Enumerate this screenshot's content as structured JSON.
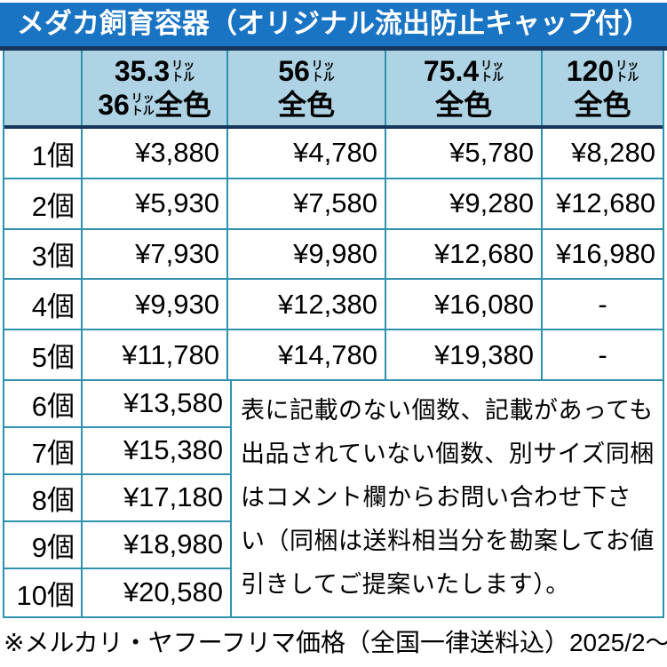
{
  "title": "メダカ飼育容器（オリジナル流出防止キャップ付）",
  "colors": {
    "title_bg": "#1a74c4",
    "title_bottom_border": "#17365d",
    "header_bg": "#aed3e4",
    "grid_border": "#2e91ae",
    "header_divider": "#17365d",
    "title_text": "#ffffff",
    "body_text": "#000000"
  },
  "table": {
    "columns": [
      {
        "line1_value": "35.3",
        "unit_top": "リッ",
        "unit_bottom": "トル",
        "line2_value": "36",
        "line2_label": "全色"
      },
      {
        "line1_value": "56",
        "unit_top": "リッ",
        "unit_bottom": "トル",
        "line2_label": "全色"
      },
      {
        "line1_value": "75.4",
        "unit_top": "リッ",
        "unit_bottom": "トル",
        "line2_label": "全色"
      },
      {
        "line1_value": "120",
        "unit_top": "リッ",
        "unit_bottom": "トル",
        "line2_label": "全色"
      }
    ],
    "rows_multi": [
      {
        "count": "1個",
        "prices": [
          "¥3,880",
          "¥4,780",
          "¥5,780",
          "¥8,280"
        ]
      },
      {
        "count": "2個",
        "prices": [
          "¥5,930",
          "¥7,580",
          "¥9,280",
          "¥12,680"
        ]
      },
      {
        "count": "3個",
        "prices": [
          "¥7,930",
          "¥9,980",
          "¥12,680",
          "¥16,980"
        ]
      },
      {
        "count": "4個",
        "prices": [
          "¥9,930",
          "¥12,380",
          "¥16,080",
          "-"
        ]
      },
      {
        "count": "5個",
        "prices": [
          "¥11,780",
          "¥14,780",
          "¥19,380",
          "-"
        ]
      }
    ],
    "rows_single": [
      {
        "count": "6個",
        "price": "¥13,580"
      },
      {
        "count": "7個",
        "price": "¥15,380"
      },
      {
        "count": "8個",
        "price": "¥17,180"
      },
      {
        "count": "9個",
        "price": "¥18,980"
      },
      {
        "count": "10個",
        "price": "¥20,580"
      }
    ],
    "note": "表に記載のない個数、記載があっても出品されていない個数、別サイズ同梱はコメント欄からお問い合わせ下さい（同梱は送料相当分を勘案してお値引きしてご提案いたします）。"
  },
  "footer": "※メルカリ・ヤフーフリマ価格（全国一律送料込）2025/2～"
}
